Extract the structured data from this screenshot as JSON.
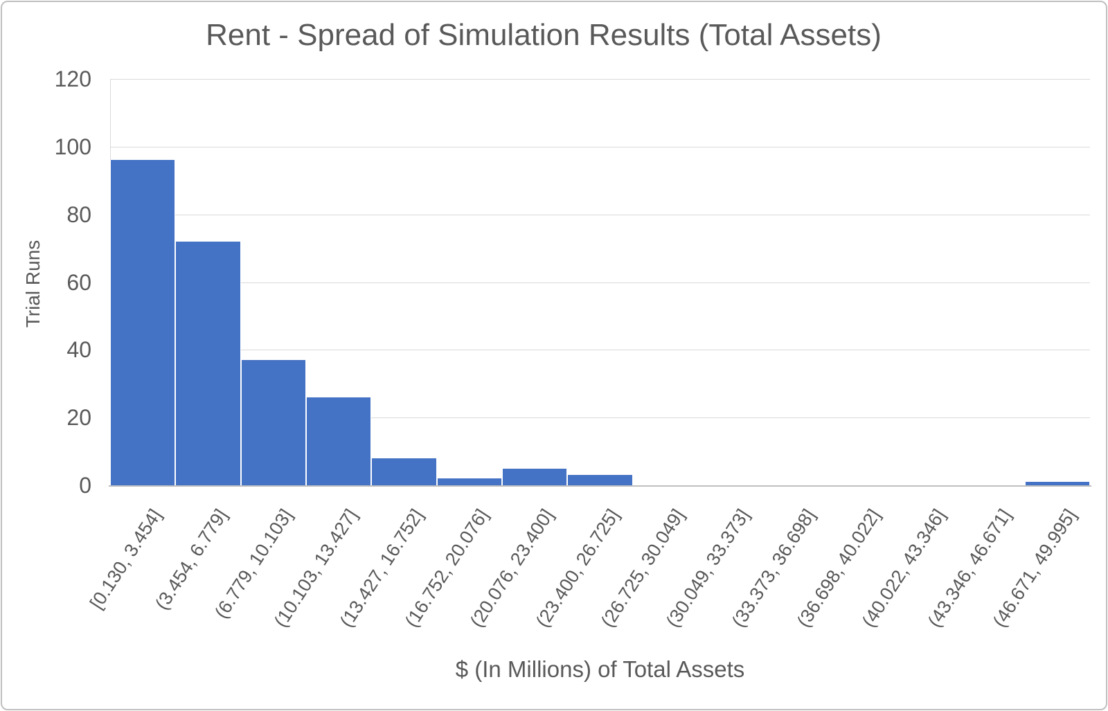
{
  "chart_data": {
    "type": "bar",
    "subtype": "histogram",
    "title": "Rent - Spread of Simulation Results (Total Assets)",
    "xlabel": "$ (In Millions) of Total Assets",
    "ylabel": "Trial Runs",
    "categories": [
      "[0.130, 3.454]",
      "(3.454, 6.779]",
      "(6.779, 10.103]",
      "(10.103, 13.427]",
      "(13.427, 16.752]",
      "(16.752, 20.076]",
      "(20.076, 23.400]",
      "(23.400, 26.725]",
      "(26.725, 30.049]",
      "(30.049, 33.373]",
      "(33.373, 36.698]",
      "(36.698, 40.022]",
      "(40.022, 43.346]",
      "(43.346, 46.671]",
      "(46.671, 49.995]"
    ],
    "values": [
      96,
      72,
      37,
      26,
      8,
      2,
      5,
      3,
      0,
      0,
      0,
      0,
      0,
      0,
      1
    ],
    "ylim": [
      0,
      120
    ],
    "yticks": [
      0,
      20,
      40,
      60,
      80,
      100,
      120
    ],
    "grid": true,
    "legend_position": "none",
    "colors": {
      "bar": "#4472c4",
      "gridline": "#d9d9d9",
      "axis_line": "#bfbfbf",
      "text": "#595959",
      "frame_border": "#bfbfbf",
      "background": "#ffffff"
    }
  }
}
